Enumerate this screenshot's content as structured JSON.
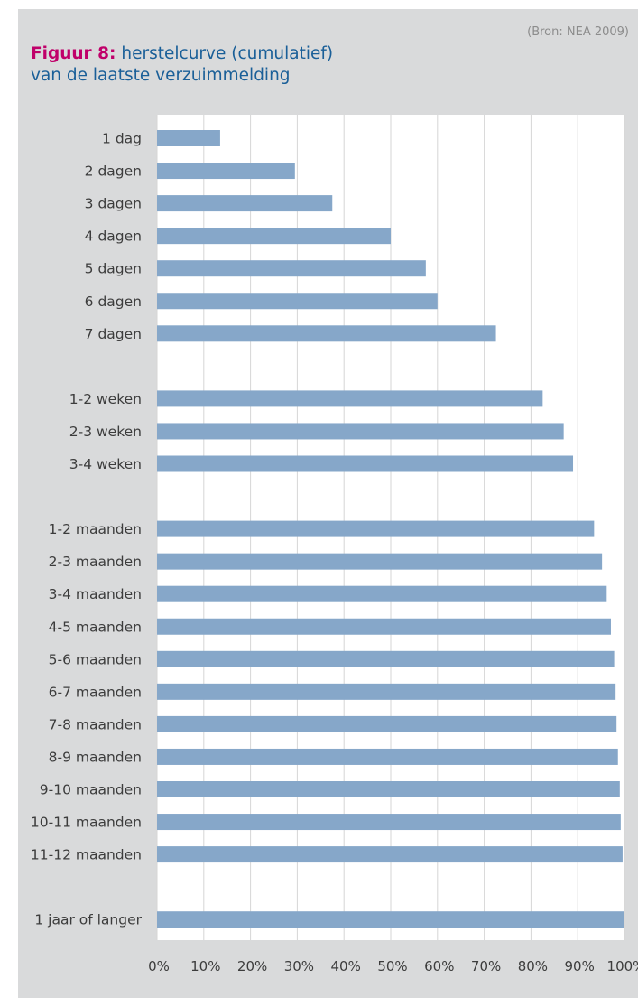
{
  "source": "(Bron: NEA 2009)",
  "figure_label": "Figuur 8:",
  "title_line1": "herstelcurve (cumulatief)",
  "title_line2": "van de laatste verzuimmelding",
  "colors": {
    "bar": "#86a7c9",
    "panel": "#d9dadb",
    "plot_bg": "#ffffff",
    "grid": "#d6d6d6",
    "label": "#3c3c3c",
    "accent": "#c0006a",
    "title": "#1a5f98"
  },
  "chart_data": {
    "type": "bar",
    "orientation": "horizontal",
    "title": "herstelcurve (cumulatief) van de laatste verzuimmelding",
    "xlabel": "",
    "ylabel": "",
    "xlim": [
      0,
      100
    ],
    "x_ticks": [
      "0%",
      "10%",
      "20%",
      "30%",
      "40%",
      "50%",
      "60%",
      "70%",
      "80%",
      "90%",
      "100%"
    ],
    "grid": true,
    "groups": [
      {
        "categories": [
          "1 dag",
          "2 dagen",
          "3 dagen",
          "4 dagen",
          "5 dagen",
          "6 dagen",
          "7 dagen"
        ],
        "values": [
          13.5,
          29.5,
          37.5,
          50,
          57.5,
          60,
          72.5
        ]
      },
      {
        "categories": [
          "1-2 weken",
          "2-3 weken",
          "3-4 weken"
        ],
        "values": [
          82.5,
          87,
          89
        ]
      },
      {
        "categories": [
          "1-2 maanden",
          "2-3 maanden",
          "3-4 maanden",
          "4-5 maanden",
          "5-6 maanden",
          "6-7 maanden",
          "7-8 maanden",
          "8-9 maanden",
          "9-10 maanden",
          "10-11 maanden",
          "11-12 maanden"
        ],
        "values": [
          93.5,
          95.2,
          96.2,
          97.1,
          97.8,
          98.1,
          98.3,
          98.6,
          99,
          99.2,
          99.6
        ]
      },
      {
        "categories": [
          "1 jaar of langer"
        ],
        "values": [
          100
        ]
      }
    ]
  }
}
